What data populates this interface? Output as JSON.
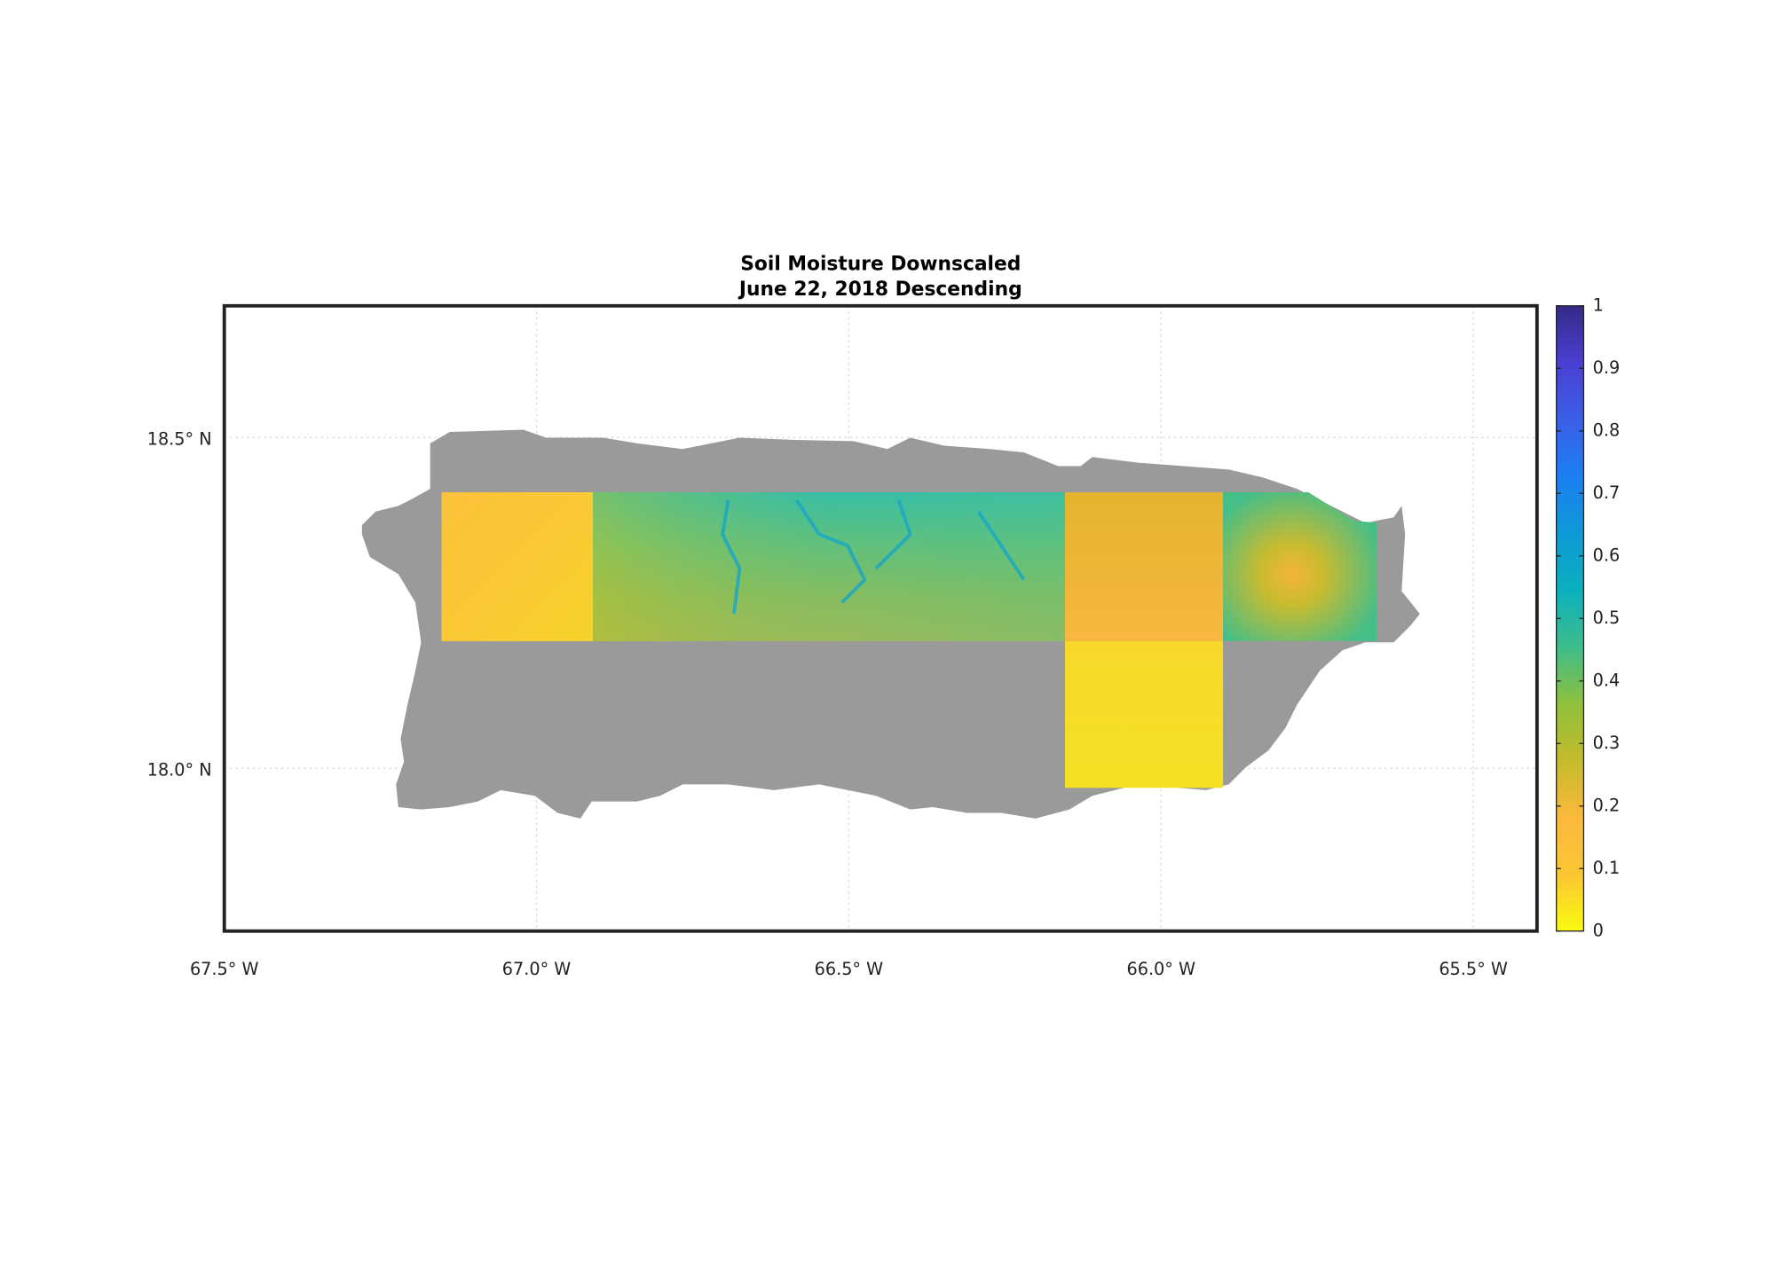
{
  "chart_data": {
    "type": "map",
    "title": "Soil Moisture Downscaled",
    "subtitle": "June 22, 2018 Descending",
    "xlim": [
      -67.5,
      -65.398
    ],
    "ylim": [
      17.754,
      18.699
    ],
    "xticks": [
      {
        "value": -67.5,
        "label": "67.5° W"
      },
      {
        "value": -67.0,
        "label": "67.0° W"
      },
      {
        "value": -66.5,
        "label": "66.5° W"
      },
      {
        "value": -66.0,
        "label": "66.0° W"
      },
      {
        "value": -65.5,
        "label": "65.5° W"
      }
    ],
    "yticks": [
      {
        "value": 18.0,
        "label": "18.0° N"
      },
      {
        "value": 18.5,
        "label": "18.5° N"
      }
    ],
    "grid": true,
    "clim": [
      0,
      1
    ],
    "cticks": [
      0,
      0.1,
      0.2,
      0.3,
      0.4,
      0.5,
      0.6,
      0.7,
      0.8,
      0.9,
      1
    ],
    "colormap": [
      "#f9fb0e",
      "#fbc634",
      "#fbb93d",
      "#c4bb2b",
      "#8fc03c",
      "#3dbd8b",
      "#0bb0be",
      "#0e99d7",
      "#1c7ff2",
      "#3a5fe6",
      "#4a3fd2",
      "#352a87"
    ]
  }
}
